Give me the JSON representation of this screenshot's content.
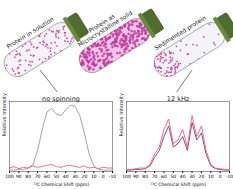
{
  "vials": [
    "Protein in solution",
    "Protein as\nMicrocrystalline solid",
    "Sedimented protein"
  ],
  "chart_data": [
    {
      "type": "line",
      "annotations": [
        "no spinning"
      ],
      "xlabel": "¹³C Chemical Shift (ppm)",
      "ylabel": "Relative Intensity",
      "x": [
        100,
        95,
        90,
        85,
        80,
        75,
        70,
        65,
        60,
        55,
        50,
        45,
        40,
        35,
        30,
        25,
        20,
        15,
        10,
        5,
        0,
        -5,
        -10
      ],
      "series": [
        {
          "color": "#9a9a9a",
          "values": [
            0.02,
            0.02,
            0.03,
            0.03,
            0.05,
            0.1,
            0.3,
            0.6,
            0.85,
            0.9,
            0.82,
            0.8,
            0.88,
            0.95,
            0.93,
            0.8,
            0.55,
            0.25,
            0.08,
            0.03,
            0.02,
            0.02,
            0.02
          ]
        },
        {
          "color": "#e8609a",
          "values": [
            0.05,
            0.07,
            0.04,
            0.06,
            0.05,
            0.08,
            0.06,
            0.07,
            0.09,
            0.1,
            0.07,
            0.06,
            0.08,
            0.09,
            0.07,
            0.06,
            0.08,
            0.05,
            0.06,
            0.04,
            0.06,
            0.05,
            0.05
          ]
        }
      ],
      "xlim": [
        100,
        -10
      ],
      "xticks": [
        100,
        90,
        80,
        70,
        60,
        50,
        40,
        30,
        20,
        10,
        0,
        -10
      ],
      "ylim": [
        0,
        1
      ],
      "tick_labels": "x"
    },
    {
      "type": "line",
      "annotations": [
        "12 kHz"
      ],
      "xlabel": "¹³C Chemical Shift (ppm)",
      "ylabel": "Relative Intensity",
      "x": [
        100,
        95,
        90,
        85,
        80,
        75,
        70,
        65,
        60,
        55,
        50,
        45,
        40,
        35,
        30,
        25,
        20,
        15,
        10,
        5,
        0,
        -5,
        -10
      ],
      "series": [
        {
          "color": "#8b3a5a",
          "values": [
            0.02,
            0.02,
            0.03,
            0.03,
            0.04,
            0.08,
            0.2,
            0.3,
            0.5,
            0.65,
            0.35,
            0.4,
            0.5,
            0.3,
            0.7,
            0.45,
            0.55,
            0.25,
            0.08,
            0.04,
            0.03,
            0.02,
            0.02
          ]
        },
        {
          "color": "#e8609a",
          "values": [
            0.03,
            0.03,
            0.04,
            0.05,
            0.05,
            0.1,
            0.25,
            0.35,
            0.6,
            0.75,
            0.4,
            0.45,
            0.6,
            0.35,
            0.8,
            0.5,
            0.65,
            0.3,
            0.1,
            0.05,
            0.04,
            0.03,
            0.03
          ]
        }
      ],
      "xlim": [
        100,
        -10
      ],
      "xticks": [
        100,
        90,
        80,
        70,
        60,
        50,
        40,
        30,
        20,
        10,
        0,
        -10
      ],
      "ylim": [
        0,
        1
      ],
      "tick_labels": "x"
    }
  ]
}
